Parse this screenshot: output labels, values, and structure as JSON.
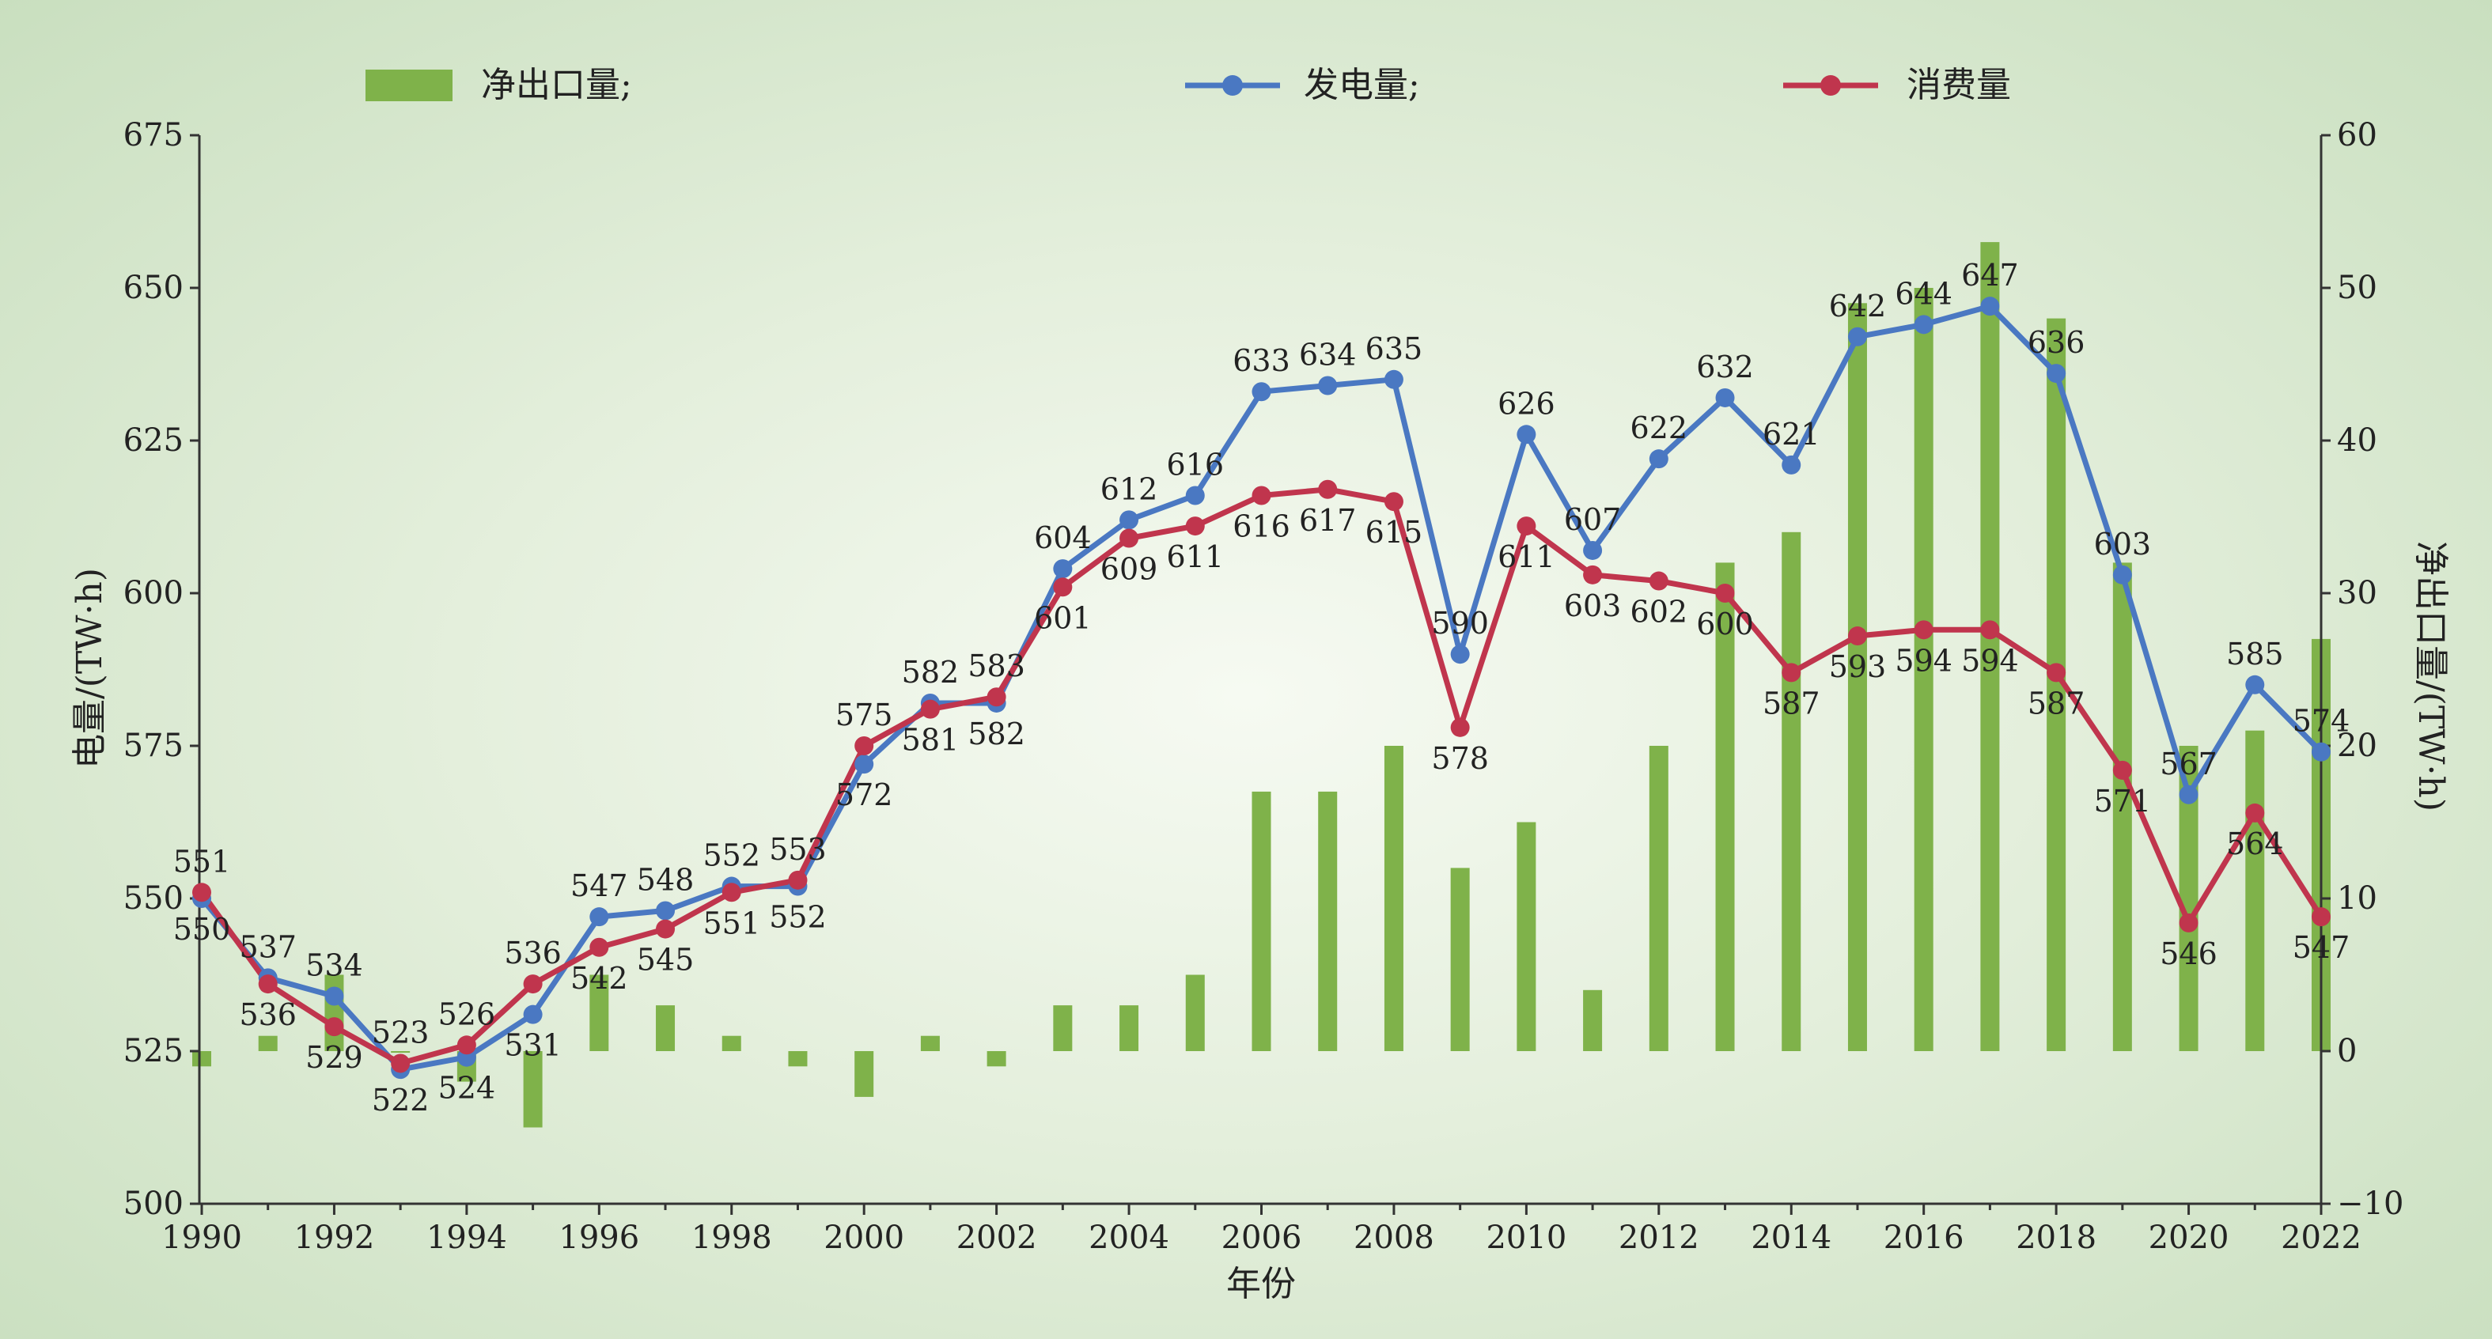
{
  "chart_data": {
    "type": "bar+line",
    "x": [
      1990,
      1991,
      1992,
      1993,
      1994,
      1995,
      1996,
      1997,
      1998,
      1999,
      2000,
      2001,
      2002,
      2003,
      2004,
      2005,
      2006,
      2007,
      2008,
      2009,
      2010,
      2011,
      2012,
      2013,
      2014,
      2015,
      2016,
      2017,
      2018,
      2019,
      2020,
      2021,
      2022
    ],
    "xticks": [
      "1990",
      "1992",
      "1994",
      "1996",
      "1998",
      "2000",
      "2002",
      "2004",
      "2006",
      "2008",
      "2010",
      "2012",
      "2014",
      "2016",
      "2018",
      "2020",
      "2022"
    ],
    "xlabel": "年份",
    "ylabel": "电量/(TW·h)",
    "ylim": [
      500,
      675
    ],
    "yticks": [
      "500",
      "525",
      "550",
      "575",
      "600",
      "625",
      "650",
      "675"
    ],
    "y2label": "净出口量/(TW·h)",
    "y2lim": [
      -10,
      60
    ],
    "y2ticks": [
      "−10",
      "0",
      "10",
      "20",
      "30",
      "40",
      "50",
      "60"
    ],
    "legend_position": "top",
    "series": [
      {
        "name": "净出口量;",
        "type": "bar",
        "axis": "right",
        "color": "#7fb24a",
        "values": [
          -1,
          1,
          5,
          0,
          -2,
          -5,
          5,
          3,
          1,
          -1,
          -3,
          1,
          -1,
          3,
          3,
          5,
          17,
          17,
          20,
          12,
          15,
          4,
          20,
          32,
          34,
          49,
          50,
          53,
          48,
          32,
          20,
          21,
          27
        ]
      },
      {
        "name": "发电量;",
        "type": "line",
        "axis": "left",
        "color": "#4a78c2",
        "values": [
          550,
          537,
          534,
          522,
          524,
          531,
          547,
          548,
          552,
          552,
          572,
          582,
          582,
          604,
          612,
          616,
          633,
          634,
          635,
          590,
          626,
          607,
          622,
          632,
          621,
          642,
          644,
          647,
          636,
          603,
          567,
          585,
          574
        ]
      },
      {
        "name": "消费量",
        "type": "line",
        "axis": "left",
        "color": "#c0354d",
        "values": [
          551,
          536,
          529,
          523,
          526,
          536,
          542,
          545,
          551,
          553,
          575,
          581,
          583,
          601,
          609,
          611,
          616,
          617,
          615,
          578,
          611,
          603,
          602,
          600,
          587,
          593,
          594,
          594,
          587,
          571,
          546,
          564,
          547
        ]
      }
    ]
  }
}
